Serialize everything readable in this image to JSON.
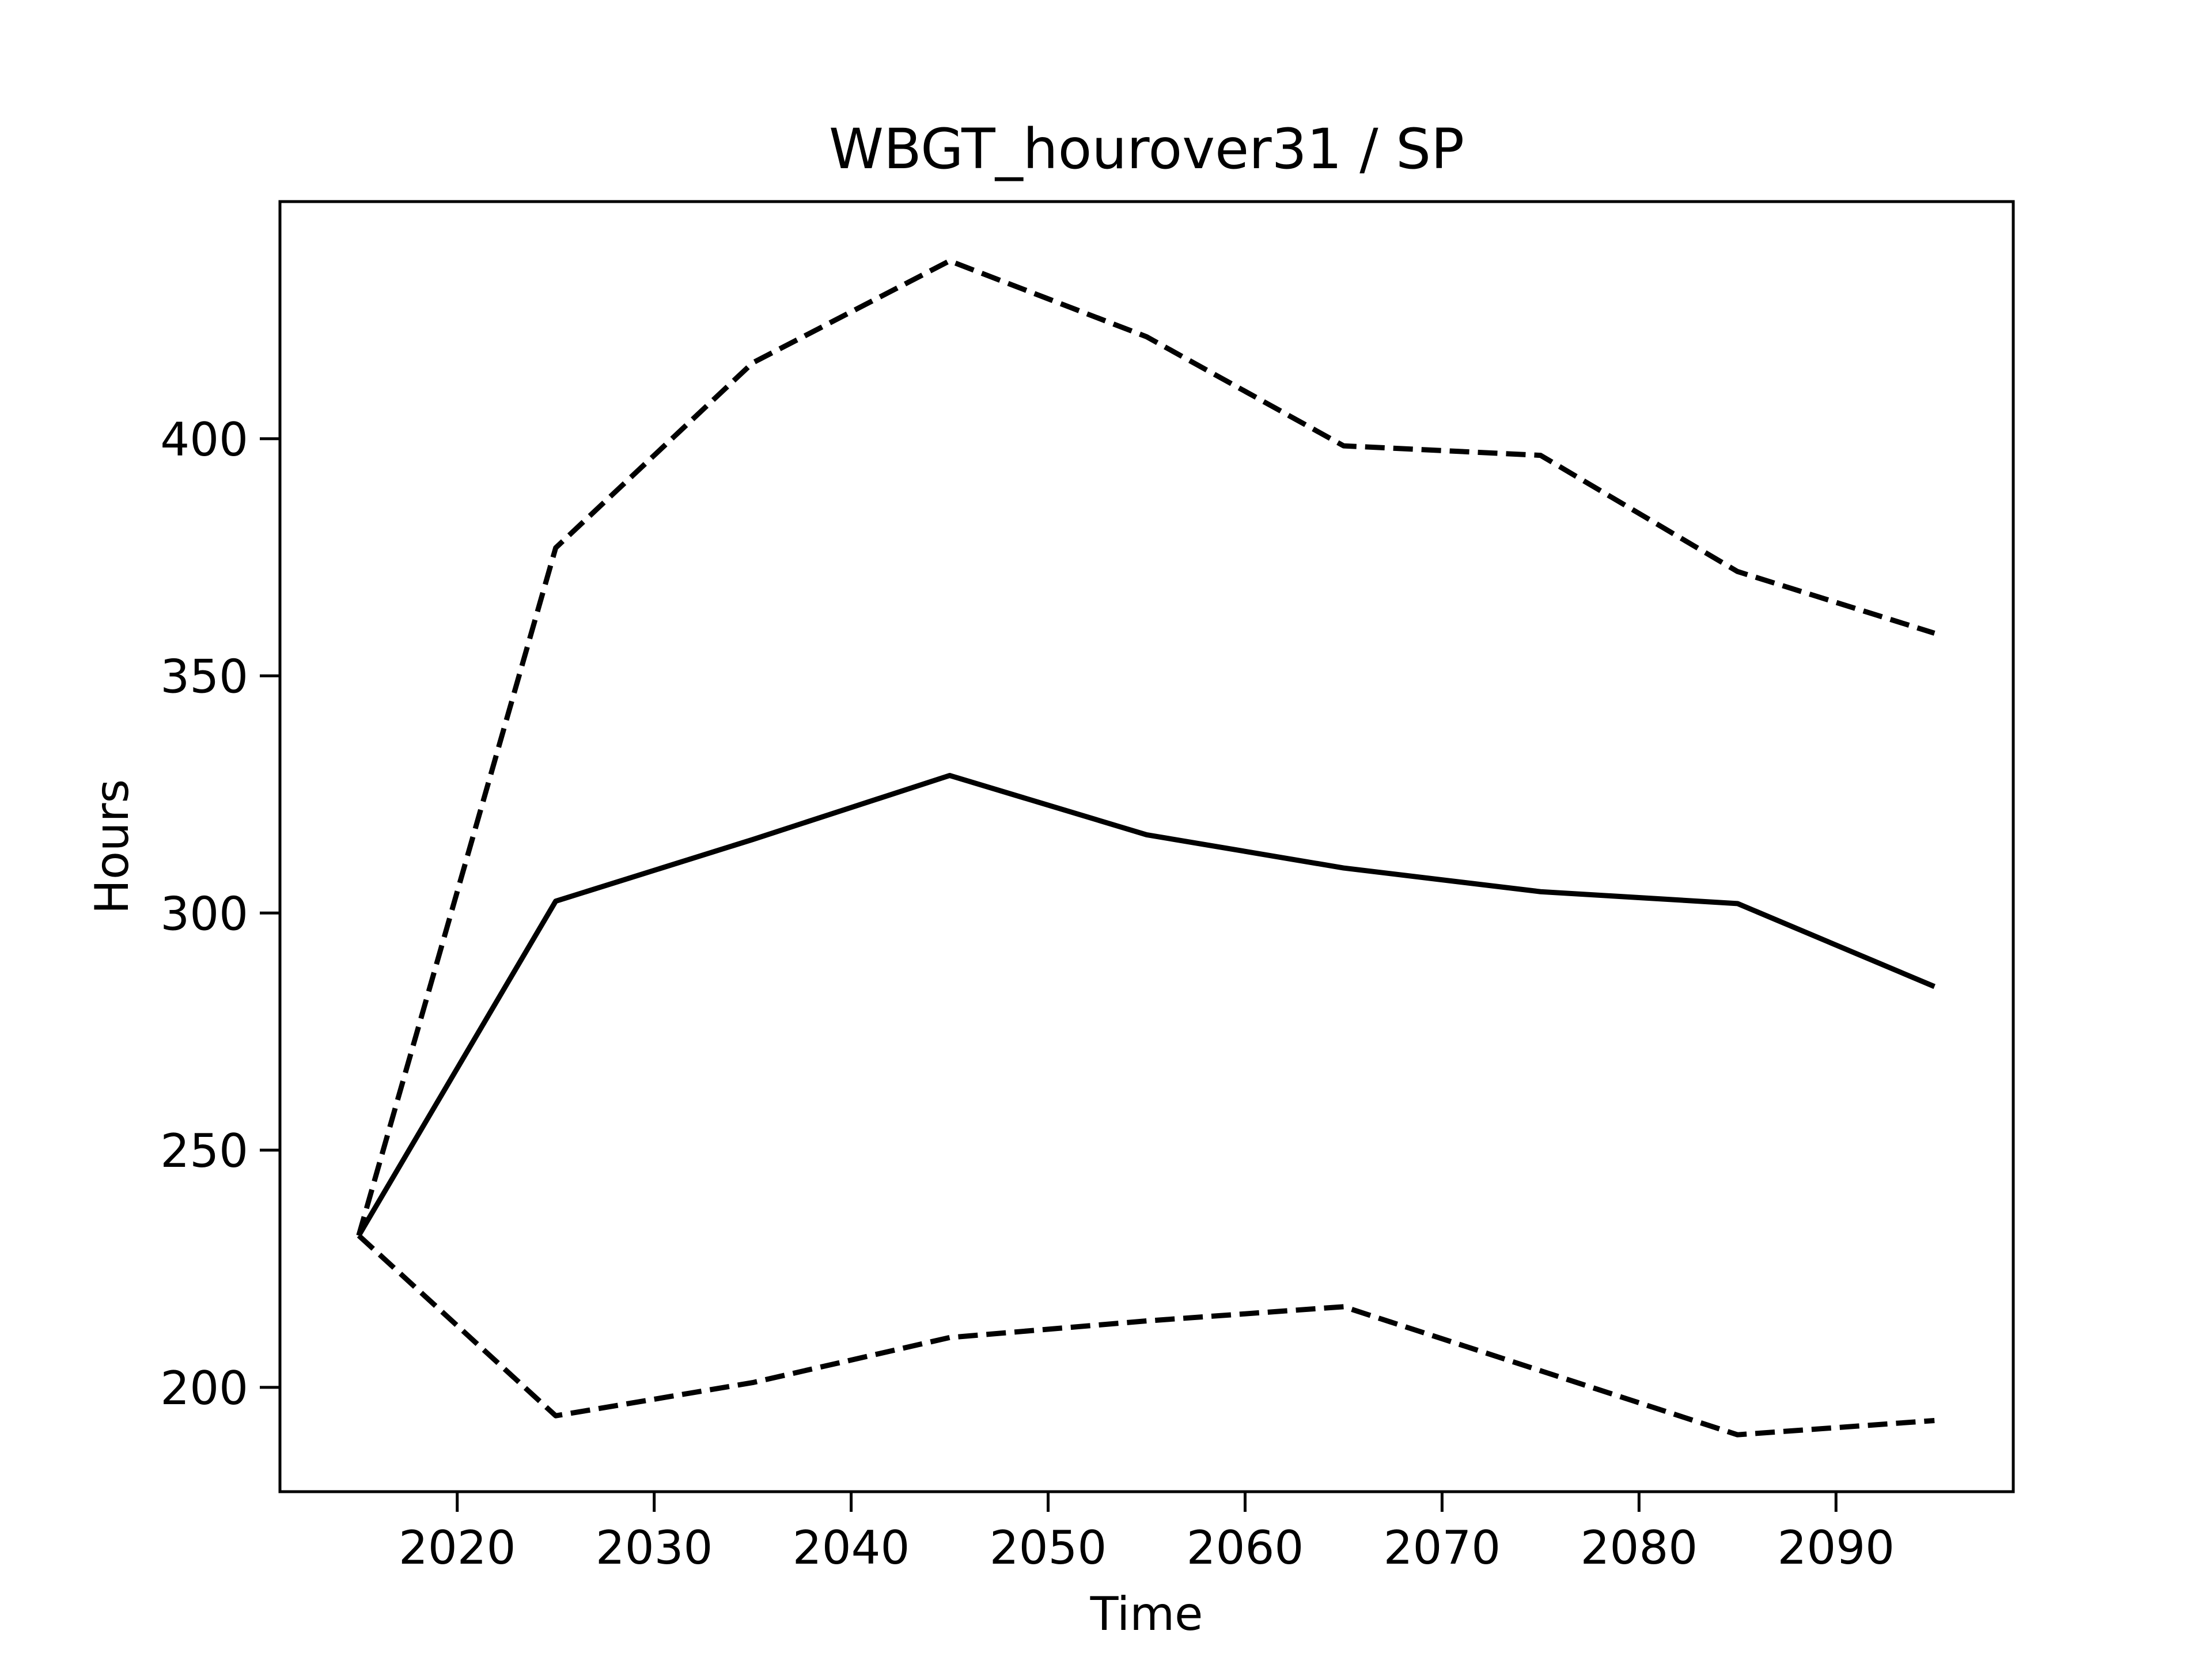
{
  "chart_data": {
    "type": "line",
    "title": "WBGT_hourover31 / SP",
    "xlabel": "Time",
    "ylabel": "Hours",
    "xlim": [
      2011,
      2099
    ],
    "ylim": [
      178,
      450
    ],
    "x_ticks": [
      2020,
      2030,
      2040,
      2050,
      2060,
      2070,
      2080,
      2090
    ],
    "y_ticks": [
      200,
      250,
      300,
      350,
      400
    ],
    "grid": false,
    "x": [
      2015,
      2025,
      2035,
      2045,
      2055,
      2065,
      2075,
      2085,
      2095
    ],
    "series": [
      {
        "style": "solid",
        "color": "#000000",
        "values": [
          232,
          302.5,
          315.5,
          329,
          316.5,
          309.5,
          304.5,
          302,
          284.5
        ]
      },
      {
        "style": "dashed",
        "color": "#000000",
        "values": [
          232,
          377,
          416,
          437.5,
          421.5,
          398.5,
          396.5,
          372,
          359
        ]
      },
      {
        "style": "dashed",
        "color": "#000000",
        "values": [
          232,
          194,
          201,
          210.5,
          214,
          217,
          203.5,
          190,
          193
        ]
      }
    ]
  }
}
